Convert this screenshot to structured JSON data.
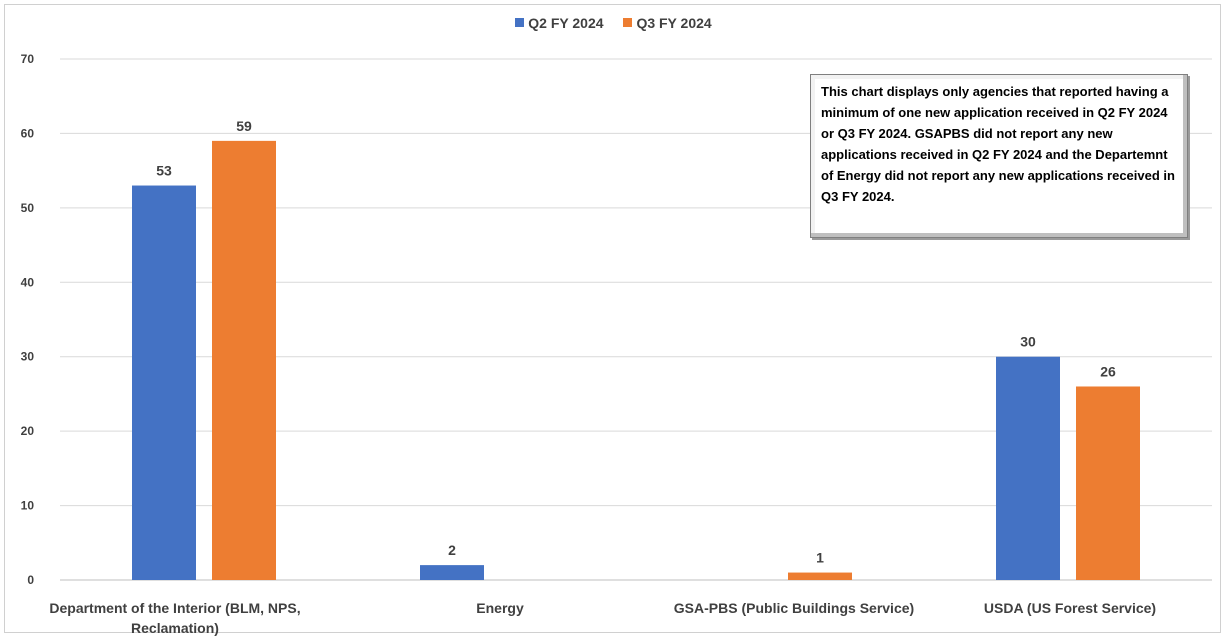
{
  "colors": {
    "q2": "#4472C4",
    "q3": "#ED7D31",
    "grid": "#d9d9d9",
    "text": "#404040"
  },
  "chart_data": {
    "type": "bar",
    "categories": [
      "Department of the Interior (BLM, NPS, Reclamation)",
      "Energy",
      "GSA-PBS (Public Buildings Service)",
      "USDA (US Forest Service)"
    ],
    "series": [
      {
        "name": "Q2 FY 2024",
        "values": [
          53,
          2,
          null,
          30
        ]
      },
      {
        "name": "Q3 FY 2024",
        "values": [
          59,
          null,
          1,
          26
        ]
      }
    ],
    "ylim": [
      0,
      70
    ],
    "yticks": [
      0,
      10,
      20,
      30,
      40,
      50,
      60,
      70
    ],
    "grid": true,
    "legend": "top-center",
    "annotation": "This chart displays only agencies that reported having a minimum of one new application received in Q2 FY 2024 or Q3 FY 2024. GSAPBS did not report  any new applications received in Q2 FY 2024 and the Departemnt of Energy did not report any new applications received in Q3 FY 2024."
  }
}
